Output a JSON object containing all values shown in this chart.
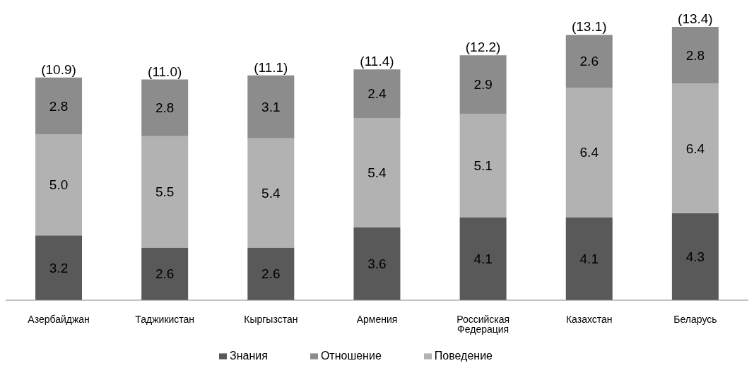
{
  "chart_data": {
    "type": "bar",
    "stacked": true,
    "legend": "bottom",
    "categories": [
      "Азербайджан",
      "Таджикистан",
      "Кыргызстан",
      "Армения",
      "Российская Федерация",
      "Казахстан",
      "Беларусь"
    ],
    "series": [
      {
        "name": "Знания",
        "color": "#595959",
        "values": [
          3.2,
          2.6,
          2.6,
          3.6,
          4.1,
          4.1,
          4.3
        ],
        "value_labels": [
          "3.2",
          "2.6",
          "2.6",
          "3.6",
          "4.1",
          "4.1",
          "4.3"
        ]
      },
      {
        "name": "Поведение",
        "color": "#b2b2b2",
        "values": [
          5.0,
          5.5,
          5.4,
          5.4,
          5.1,
          6.4,
          6.4
        ],
        "value_labels": [
          "5.0",
          "5.5",
          "5.4",
          "5.4",
          "5.1",
          "6.4",
          "6.4"
        ]
      },
      {
        "name": "Отношение",
        "color": "#8c8c8c",
        "values": [
          2.8,
          2.8,
          3.1,
          2.4,
          2.9,
          2.6,
          2.8
        ],
        "value_labels": [
          "2.8",
          "2.8",
          "3.1",
          "2.4",
          "2.9",
          "2.6",
          "2.8"
        ]
      }
    ],
    "totals": [
      "(10.9)",
      "(11.0)",
      "(11.1)",
      "(11.4)",
      "(12.2)",
      "(13.1)",
      "(13.4)"
    ]
  }
}
